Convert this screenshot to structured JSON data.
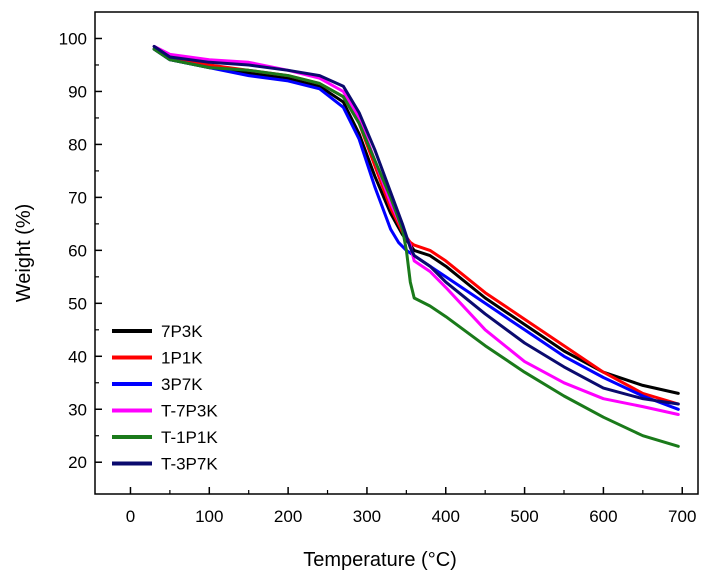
{
  "chart_data": {
    "type": "line",
    "xlabel": "Temperature (°C)",
    "ylabel": "Weight (%)",
    "xlim": [
      -45,
      720
    ],
    "ylim": [
      14,
      105
    ],
    "xticks": [
      0,
      100,
      200,
      300,
      400,
      500,
      600,
      700
    ],
    "yticks": [
      20,
      30,
      40,
      50,
      60,
      70,
      80,
      90,
      100
    ],
    "grid": false,
    "legend_position": "bottom-left",
    "series": [
      {
        "name": "7P3K",
        "color": "#000000",
        "x": [
          30,
          50,
          100,
          150,
          200,
          240,
          270,
          290,
          310,
          330,
          345,
          355,
          360,
          380,
          400,
          450,
          500,
          550,
          600,
          650,
          695
        ],
        "y": [
          98,
          96,
          94.5,
          93.5,
          92.5,
          91,
          88,
          82,
          74,
          67,
          63,
          61,
          60,
          59,
          57,
          51,
          46,
          41,
          37,
          34.5,
          33
        ]
      },
      {
        "name": "1P1K",
        "color": "#ff0000",
        "x": [
          30,
          50,
          100,
          150,
          200,
          240,
          270,
          290,
          310,
          330,
          345,
          355,
          360,
          380,
          400,
          450,
          500,
          550,
          600,
          650,
          695
        ],
        "y": [
          98,
          96.5,
          95,
          94,
          93,
          91.5,
          89,
          84,
          76,
          68,
          63.5,
          61.5,
          61,
          60,
          58,
          52,
          47,
          42,
          37,
          33,
          31
        ]
      },
      {
        "name": "3P7K",
        "color": "#0000ff",
        "x": [
          30,
          50,
          100,
          150,
          200,
          240,
          270,
          290,
          310,
          330,
          340,
          350,
          360,
          380,
          400,
          450,
          500,
          550,
          600,
          650,
          695
        ],
        "y": [
          98,
          96,
          94.5,
          93,
          92,
          90.5,
          87,
          81,
          72,
          64,
          61.5,
          60,
          59,
          57,
          55,
          50,
          45,
          40,
          36,
          32.5,
          30
        ]
      },
      {
        "name": "T-7P3K",
        "color": "#ff00ff",
        "x": [
          30,
          50,
          100,
          150,
          200,
          240,
          270,
          290,
          310,
          330,
          345,
          355,
          360,
          380,
          400,
          450,
          500,
          550,
          600,
          650,
          695
        ],
        "y": [
          98.5,
          97,
          96,
          95.5,
          94,
          92.5,
          90,
          85,
          77,
          69,
          64,
          61,
          58,
          56,
          53,
          45,
          39,
          35,
          32,
          30.5,
          29
        ]
      },
      {
        "name": "T-1P1K",
        "color": "#1a7a1a",
        "x": [
          30,
          50,
          100,
          150,
          200,
          240,
          270,
          290,
          310,
          330,
          345,
          350,
          355,
          360,
          380,
          400,
          450,
          500,
          550,
          600,
          650,
          695
        ],
        "y": [
          98,
          96,
          94.5,
          94,
          93,
          91.5,
          89,
          84,
          77,
          70,
          64,
          60,
          54,
          51,
          49.5,
          47.5,
          42,
          37,
          32.5,
          28.5,
          25,
          23
        ]
      },
      {
        "name": "T-3P7K",
        "color": "#0a0a6e",
        "x": [
          30,
          50,
          100,
          150,
          200,
          240,
          270,
          290,
          310,
          330,
          345,
          355,
          360,
          380,
          400,
          450,
          500,
          550,
          600,
          650,
          695
        ],
        "y": [
          98.5,
          96.5,
          95.5,
          95,
          94,
          93,
          91,
          86,
          79,
          71,
          65,
          60.5,
          59,
          57,
          54,
          48,
          42.5,
          38,
          34,
          32,
          31
        ]
      }
    ]
  }
}
